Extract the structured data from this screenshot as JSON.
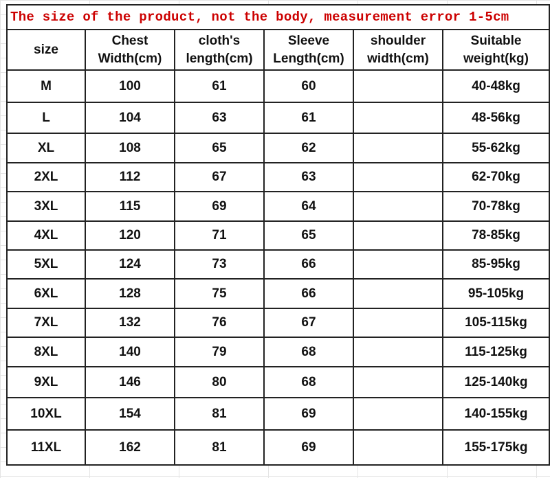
{
  "title": "The size of the product, not the body, measurement error 1-5cm",
  "colors": {
    "title": "#cc0000",
    "border": "#222222"
  },
  "headers": [
    "size",
    "Chest\nWidth(cm)",
    "cloth's\nlength(cm)",
    "Sleeve\nLength(cm)",
    "shoulder\nwidth(cm)",
    "Suitable\nweight(kg)"
  ],
  "rows": [
    [
      "M",
      "100",
      "61",
      "60",
      "",
      "40-48kg"
    ],
    [
      "L",
      "104",
      "63",
      "61",
      "",
      "48-56kg"
    ],
    [
      "XL",
      "108",
      "65",
      "62",
      "",
      "55-62kg"
    ],
    [
      "2XL",
      "112",
      "67",
      "63",
      "",
      "62-70kg"
    ],
    [
      "3XL",
      "115",
      "69",
      "64",
      "",
      "70-78kg"
    ],
    [
      "4XL",
      "120",
      "71",
      "65",
      "",
      "78-85kg"
    ],
    [
      "5XL",
      "124",
      "73",
      "66",
      "",
      "85-95kg"
    ],
    [
      "6XL",
      "128",
      "75",
      "66",
      "",
      "95-105kg"
    ],
    [
      "7XL",
      "132",
      "76",
      "67",
      "",
      "105-115kg"
    ],
    [
      "8XL",
      "140",
      "79",
      "68",
      "",
      "115-125kg"
    ],
    [
      "9XL",
      "146",
      "80",
      "68",
      "",
      "125-140kg"
    ],
    [
      "10XL",
      "154",
      "81",
      "69",
      "",
      "140-155kg"
    ],
    [
      "11XL",
      "162",
      "81",
      "69",
      "",
      "155-175kg"
    ]
  ]
}
